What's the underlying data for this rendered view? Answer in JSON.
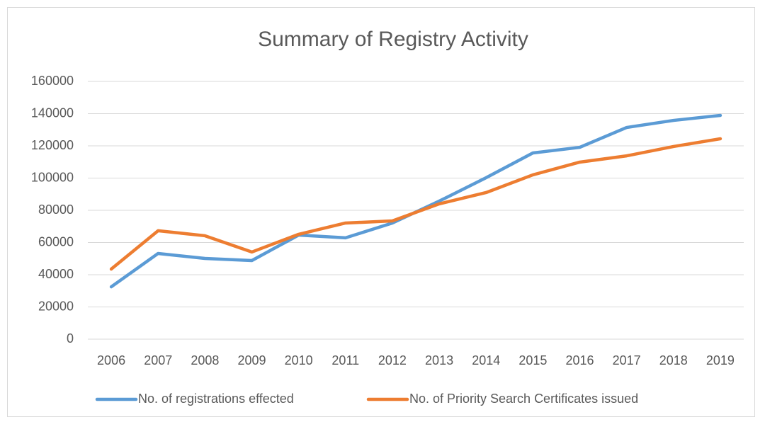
{
  "chart_data": {
    "type": "line",
    "title": "Summary of Registry Activity",
    "categories": [
      "2006",
      "2007",
      "2008",
      "2009",
      "2010",
      "2011",
      "2012",
      "2013",
      "2014",
      "2015",
      "2016",
      "2017",
      "2018",
      "2019"
    ],
    "series": [
      {
        "name": "No. of registrations effected",
        "color": "#5b9bd5",
        "values": [
          32500,
          53200,
          50100,
          48800,
          64600,
          62900,
          72100,
          85700,
          100200,
          115600,
          119100,
          131400,
          135800,
          138900
        ]
      },
      {
        "name": "No. of Priority Search Certificates issued",
        "color": "#ed7d31",
        "values": [
          43500,
          67300,
          64200,
          54100,
          65100,
          72100,
          73400,
          84000,
          91000,
          102000,
          109900,
          113800,
          119600,
          124400
        ]
      }
    ],
    "ylim": [
      0,
      160000
    ],
    "yticks": [
      0,
      20000,
      40000,
      60000,
      80000,
      100000,
      120000,
      140000,
      160000
    ],
    "grid": true,
    "legend": "bottom"
  }
}
